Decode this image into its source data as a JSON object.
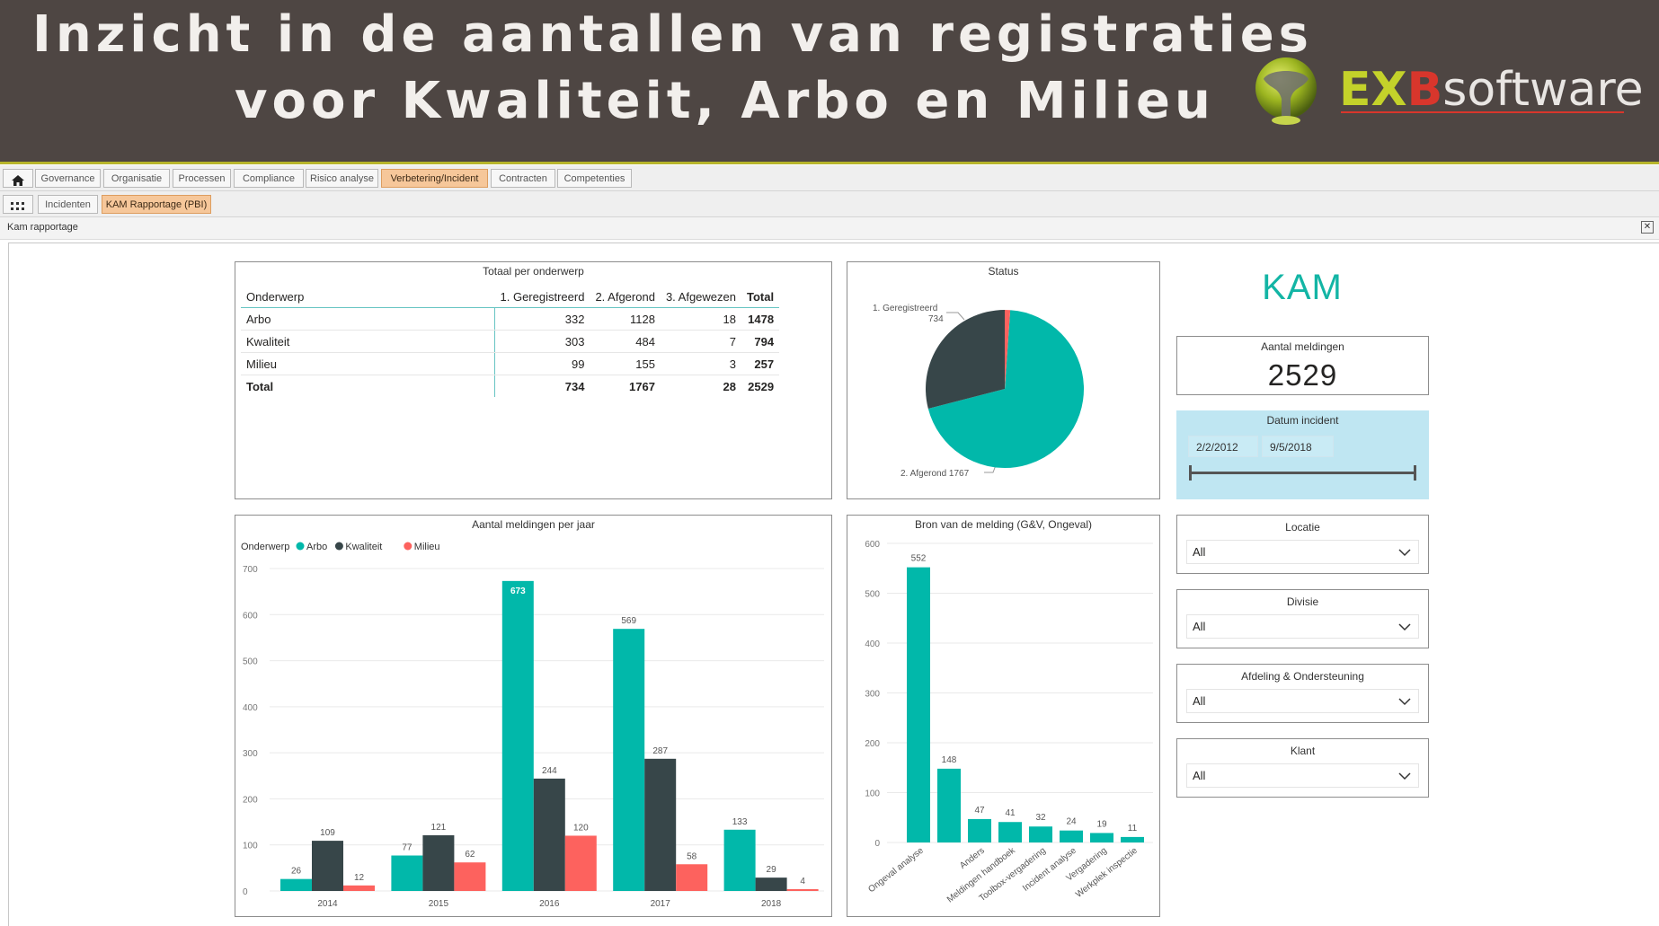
{
  "banner": {
    "title_line1": "Inzicht in de aantallen van registraties",
    "title_line2": "voor Kwaliteit, Arbo en Milieu",
    "logo_ex": "EX",
    "logo_b": "B",
    "logo_software": "software"
  },
  "nav": {
    "home_icon": "home-icon",
    "tabs": [
      "Governance",
      "Organisatie",
      "Processen",
      "Compliance",
      "Risico analyse",
      "Verbetering/Incident",
      "Contracten",
      "Competenties"
    ],
    "active_tab": "Verbetering/Incident",
    "apps_icon": "grid-icon",
    "subtabs": [
      "Incidenten",
      "KAM Rapportage (PBI)"
    ],
    "active_subtab": "KAM Rapportage (PBI)"
  },
  "panel": {
    "title": "Kam rapportage",
    "close_icon": "close-icon"
  },
  "totaal": {
    "title": "Totaal per onderwerp",
    "headers": [
      "Onderwerp",
      "1. Geregistreerd",
      "2. Afgerond",
      "3. Afgewezen",
      "Total"
    ],
    "rows": [
      [
        "Arbo",
        "332",
        "1128",
        "18",
        "1478"
      ],
      [
        "Kwaliteit",
        "303",
        "484",
        "7",
        "794"
      ],
      [
        "Milieu",
        "99",
        "155",
        "3",
        "257"
      ],
      [
        "Total",
        "734",
        "1767",
        "28",
        "2529"
      ]
    ]
  },
  "status": {
    "title": "Status",
    "label_reg": "1. Geregistreerd",
    "label_reg_value": "734",
    "label_afg": "2. Afgerond 1767"
  },
  "kam": {
    "title": "KAM",
    "count_label": "Aantal meldingen",
    "count_value": "2529",
    "date_label": "Datum incident",
    "date_from": "2/2/2012",
    "date_to": "9/5/2018"
  },
  "filters": [
    {
      "label": "Locatie",
      "value": "All"
    },
    {
      "label": "Divisie",
      "value": "All"
    },
    {
      "label": "Afdeling & Ondersteuning",
      "value": "All"
    },
    {
      "label": "Klant",
      "value": "All"
    }
  ],
  "colors": {
    "arbo": "#01b8aa",
    "kwaliteit": "#374649",
    "milieu": "#fd625e",
    "accent": "#f6c79a",
    "banner": "#4e4643"
  },
  "chart_data": [
    {
      "type": "pie",
      "title": "Status",
      "categories": [
        "1. Geregistreerd",
        "2. Afgerond",
        "3. Afgewezen"
      ],
      "values": [
        734,
        1767,
        28
      ],
      "colors": [
        "#374649",
        "#01b8aa",
        "#fd625e"
      ]
    },
    {
      "type": "bar",
      "title": "Aantal meldingen per jaar",
      "legend_title": "Onderwerp",
      "legend_position": "top-left",
      "categories": [
        "2014",
        "2015",
        "2016",
        "2017",
        "2018"
      ],
      "series": [
        {
          "name": "Arbo",
          "values": [
            26,
            77,
            673,
            569,
            133
          ],
          "color": "#01b8aa"
        },
        {
          "name": "Kwaliteit",
          "values": [
            109,
            121,
            244,
            287,
            29
          ],
          "color": "#374649"
        },
        {
          "name": "Milieu",
          "values": [
            12,
            62,
            120,
            58,
            4
          ],
          "color": "#fd625e"
        }
      ],
      "ylim": [
        0,
        700
      ],
      "yticks": [
        0,
        100,
        200,
        300,
        400,
        500,
        600,
        700
      ],
      "grid": true
    },
    {
      "type": "bar",
      "title": "Bron van de melding (G&V, Ongeval)",
      "categories": [
        "Ongeval analyse",
        "",
        "Anders",
        "Meldingen handboek",
        "Toolbox-vergadering",
        "Incident analyse",
        "Vergadering",
        "Werkplek inspectie"
      ],
      "values": [
        552,
        148,
        47,
        41,
        32,
        24,
        19,
        11
      ],
      "color": "#01b8aa",
      "ylim": [
        0,
        600
      ],
      "yticks": [
        0,
        100,
        200,
        300,
        400,
        500,
        600
      ],
      "grid": true
    }
  ]
}
